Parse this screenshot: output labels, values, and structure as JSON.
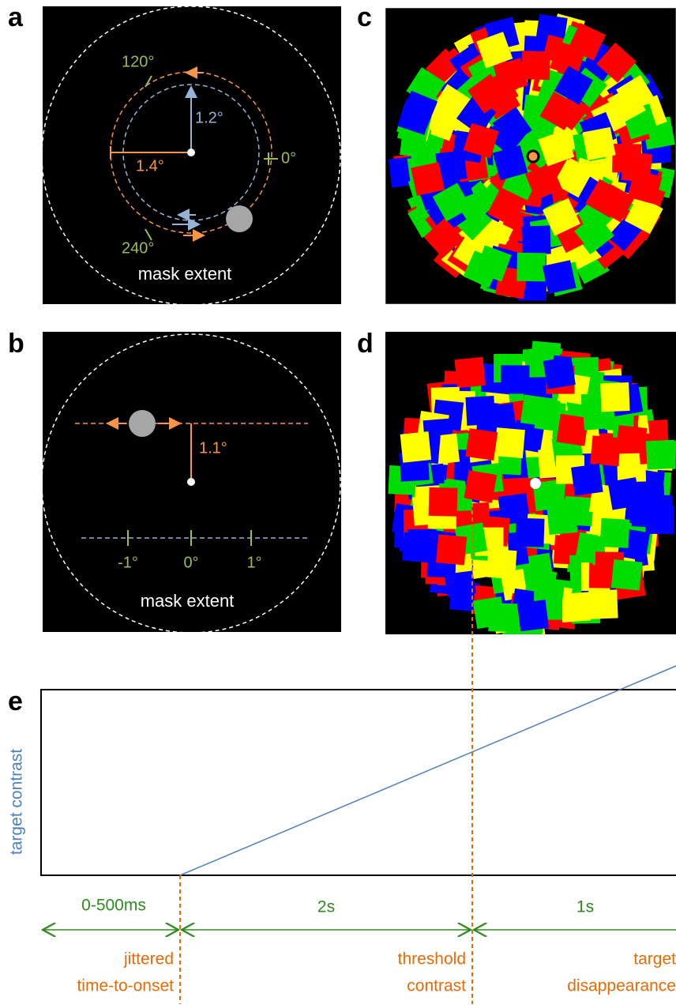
{
  "panel_labels": [
    "a",
    "b",
    "c",
    "d",
    "e"
  ],
  "panel_a": {
    "angle_120": "120°",
    "radius_blue": "1.2°",
    "radius_orange": "1.4°",
    "angle_0": "0°",
    "angle_240": "240°",
    "mask": "mask extent"
  },
  "panel_b": {
    "offset": "1.1°",
    "tick_neg": "-1°",
    "tick_zero": "0°",
    "tick_pos": "1°",
    "mask": "mask extent"
  },
  "panel_e": {
    "y_label": "target contrast",
    "intervals": [
      "0-500ms",
      "2s",
      "1s"
    ],
    "events": [
      [
        "jittered",
        "time-to-onset"
      ],
      [
        "threshold",
        "contrast"
      ],
      [
        "target",
        "disappearance"
      ]
    ]
  }
}
